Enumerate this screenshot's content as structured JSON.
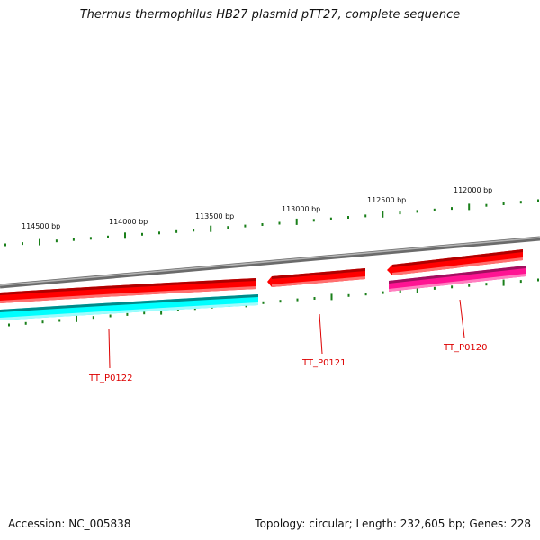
{
  "title": "Thermus thermophilus HB27 plasmid pTT27, complete sequence",
  "footer": {
    "accession": "Accession: NC_005838",
    "summary": "Topology: circular; Length: 232,605 bp; Genes: 228"
  },
  "ruler": {
    "labels": [
      "114500 bp",
      "114000 bp",
      "113500 bp",
      "113000 bp",
      "112500 bp",
      "112000 bp"
    ],
    "tick_color": "#1a7f1a"
  },
  "genes": [
    {
      "name": "TT_P0122",
      "color": "#ff0000",
      "strand_partner_color": "#00ffff"
    },
    {
      "name": "TT_P0121",
      "color": "#ff0000"
    },
    {
      "name": "TT_P0120",
      "color": "#ff0000",
      "strand_partner_color": "#ff1493"
    }
  ],
  "colors": {
    "backbone": "#808080",
    "gene_forward": "#ff0000",
    "feature_cyan": "#00ffff",
    "feature_magenta": "#ff1493",
    "label": "#dd0000"
  }
}
